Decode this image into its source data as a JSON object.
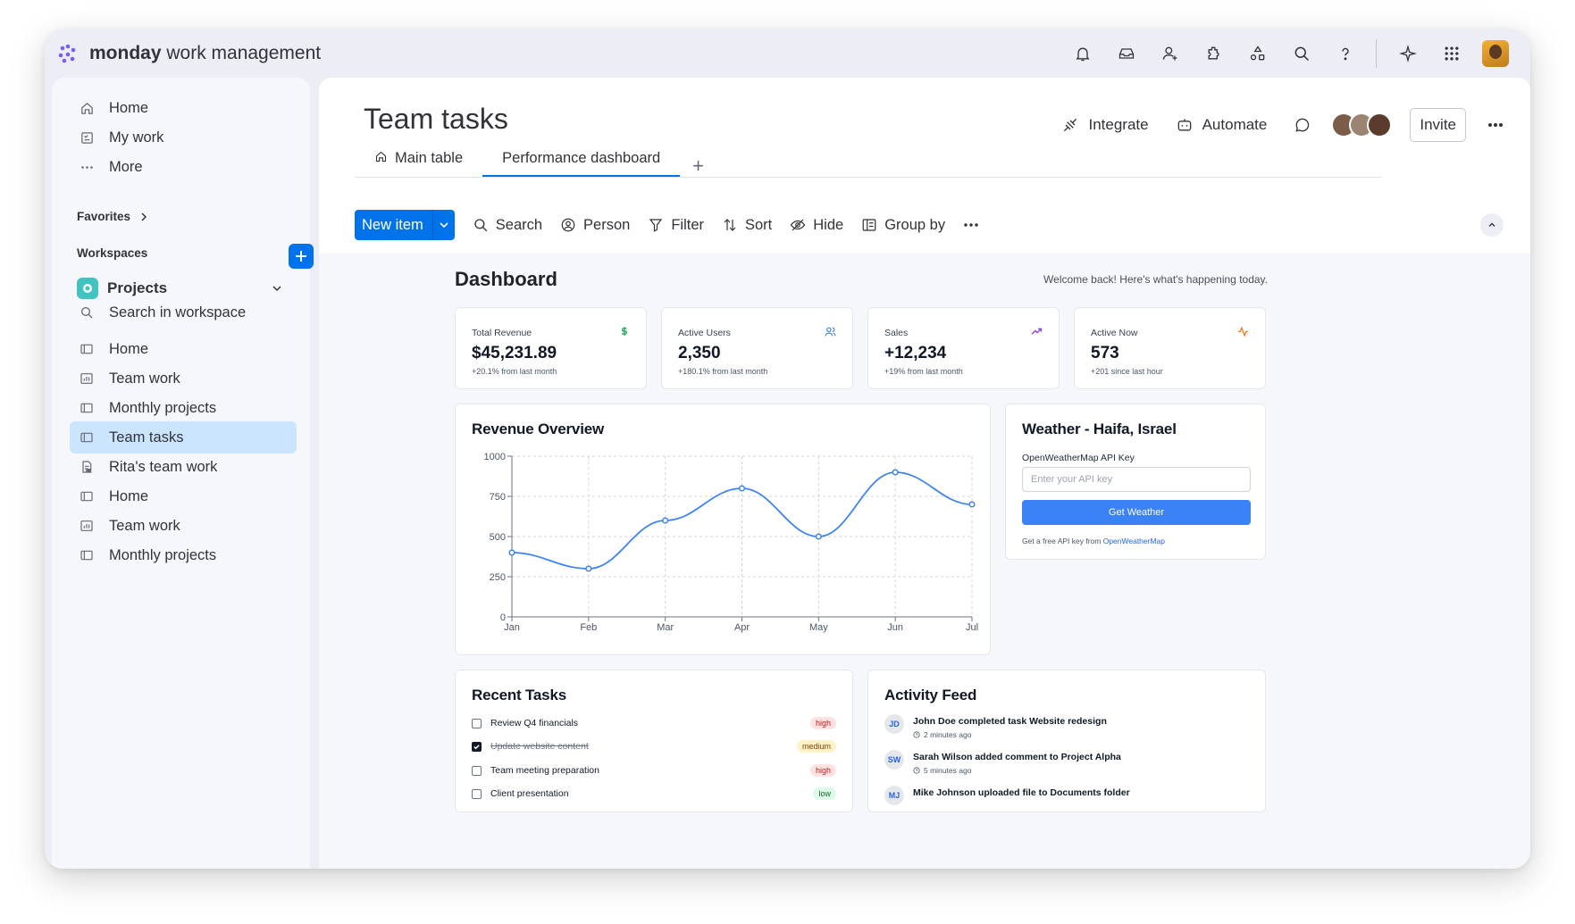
{
  "app": {
    "brand_bold": "monday",
    "brand_rest": " work management"
  },
  "topbar_icons": [
    "bell-icon",
    "inbox-icon",
    "invite-members-icon",
    "apps-icon",
    "integrations-icon",
    "search-icon",
    "help-icon",
    "ai-sparkle-icon",
    "grid-menu-icon"
  ],
  "sidebar": {
    "top_items": [
      {
        "label": "Home",
        "icon": "home-icon"
      },
      {
        "label": "My work",
        "icon": "my-work-icon"
      },
      {
        "label": "More",
        "icon": "more-icon"
      }
    ],
    "favorites_label": "Favorites",
    "workspaces_label": "Workspaces",
    "workspace_name": "Projects",
    "workspace_search": "Search in workspace",
    "boards": [
      {
        "label": "Home",
        "icon": "board-icon"
      },
      {
        "label": "Team work",
        "icon": "dashboard-icon"
      },
      {
        "label": "Monthly projects",
        "icon": "board-icon"
      },
      {
        "label": "Team tasks",
        "icon": "board-icon",
        "active": true
      },
      {
        "label": "Rita's team work",
        "icon": "doc-icon"
      },
      {
        "label": "Home",
        "icon": "board-icon"
      },
      {
        "label": "Team work",
        "icon": "dashboard-icon"
      },
      {
        "label": "Monthly projects",
        "icon": "board-icon"
      }
    ]
  },
  "header": {
    "title": "Team tasks",
    "integrate": "Integrate",
    "automate": "Automate",
    "invite": "Invite",
    "tabs": [
      {
        "label": "Main table"
      },
      {
        "label": "Performance dashboard",
        "active": true
      }
    ],
    "tab_add": "+"
  },
  "toolbar": {
    "new_item": "New item",
    "search": "Search",
    "person": "Person",
    "filter": "Filter",
    "sort": "Sort",
    "hide": "Hide",
    "group_by": "Group by"
  },
  "dashboard": {
    "title": "Dashboard",
    "welcome": "Welcome back! Here's what's happening today.",
    "stats": [
      {
        "label": "Total Revenue",
        "value": "$45,231.89",
        "sub": "+20.1% from last month",
        "icon": "dollar-icon",
        "color": "#16a34a"
      },
      {
        "label": "Active Users",
        "value": "2,350",
        "sub": "+180.1% from last month",
        "icon": "users-icon",
        "color": "#3b82f6"
      },
      {
        "label": "Sales",
        "value": "+12,234",
        "sub": "+19% from last month",
        "icon": "trending-up-icon",
        "color": "#9333ea"
      },
      {
        "label": "Active Now",
        "value": "573",
        "sub": "+201 since last hour",
        "icon": "activity-icon",
        "color": "#f97316"
      }
    ],
    "weather": {
      "title": "Weather - Haifa, Israel",
      "api_label": "OpenWeatherMap API Key",
      "api_placeholder": "Enter your API key",
      "button": "Get Weather",
      "foot_text": "Get a free API key from ",
      "foot_link": "OpenWeatherMap"
    },
    "recent_tasks": {
      "title": "Recent Tasks",
      "items": [
        {
          "text": "Review Q4 financials",
          "done": false,
          "priority": "high"
        },
        {
          "text": "Update website content",
          "done": true,
          "priority": "medium"
        },
        {
          "text": "Team meeting preparation",
          "done": false,
          "priority": "high"
        },
        {
          "text": "Client presentation",
          "done": false,
          "priority": "low"
        }
      ]
    },
    "activity": {
      "title": "Activity Feed",
      "items": [
        {
          "initials": "JD",
          "text": "John Doe completed task Website redesign",
          "time": "2 minutes ago"
        },
        {
          "initials": "SW",
          "text": "Sarah Wilson added comment to Project Alpha",
          "time": "5 minutes ago"
        },
        {
          "initials": "MJ",
          "text": "Mike Johnson uploaded file to Documents folder",
          "time": ""
        }
      ]
    }
  },
  "chart_data": {
    "type": "line",
    "title": "Revenue Overview",
    "categories": [
      "Jan",
      "Feb",
      "Mar",
      "Apr",
      "May",
      "Jun",
      "Jul"
    ],
    "values": [
      400,
      300,
      600,
      800,
      500,
      900,
      700
    ],
    "yticks": [
      0,
      250,
      500,
      750,
      1000
    ],
    "ylim": [
      0,
      1000
    ],
    "xlabel": "",
    "ylabel": "",
    "grid": true,
    "color": "#3b82f6"
  }
}
